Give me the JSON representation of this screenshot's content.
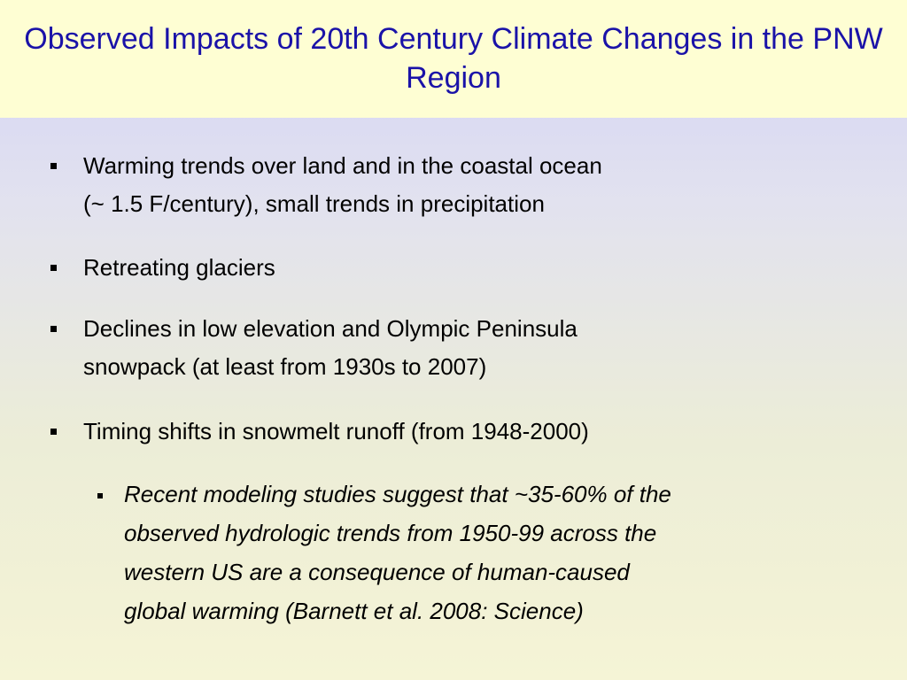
{
  "slide": {
    "title": "Observed Impacts of 20th Century Climate Changes in the PNW Region",
    "bullets": [
      {
        "line1": "Warming trends over land and in the coastal ocean",
        "line2": "(~ 1.5 F/century), small trends in precipitation"
      },
      {
        "line1": "Retreating glaciers"
      },
      {
        "line1": "Declines in low elevation and Olympic Peninsula",
        "line2": "snowpack (at least from 1930s to 2007)"
      },
      {
        "line1": "Timing shifts in snowmelt runoff (from 1948-2000)"
      }
    ],
    "sub_bullet": {
      "line1": "Recent modeling studies suggest that ~35-60% of the",
      "line2": "observed hydrologic trends from 1950-99 across the",
      "line3": "western US are a consequence of human-caused",
      "line4": "global warming (Barnett et al. 2008: Science)"
    }
  },
  "colors": {
    "title": "#1a12a8",
    "title_band": "#fefed3",
    "background_top": "#d2d2f6",
    "background_bottom": "#f5f4d6",
    "text": "#000000"
  },
  "icons": {
    "bullet_marker": "square-bullet-icon"
  }
}
